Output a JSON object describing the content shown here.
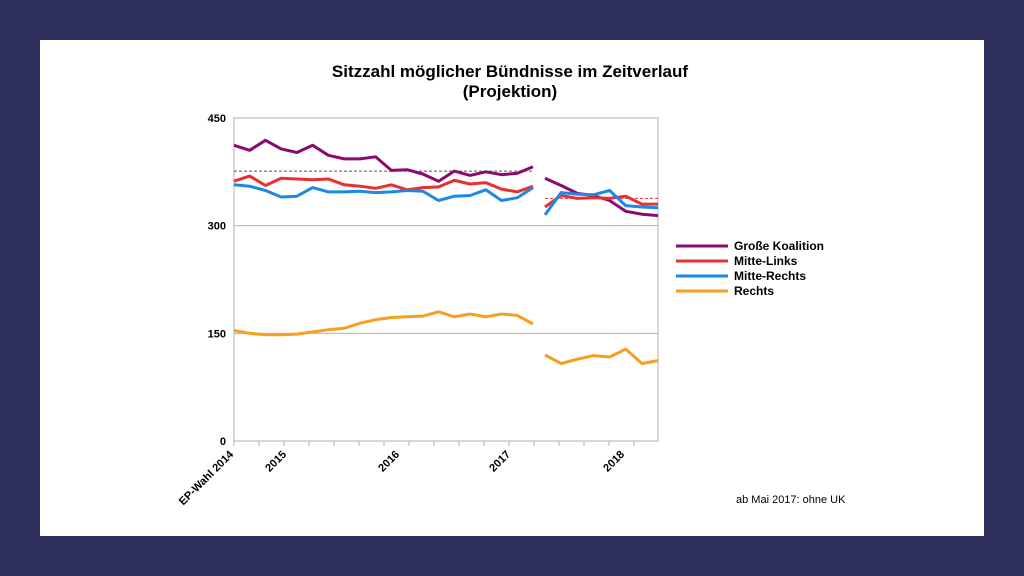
{
  "chart_data": {
    "type": "line",
    "title": "Sitzzahl möglicher Bündnisse im Zeitverlauf",
    "subtitle": "(Projektion)",
    "xlabel": "",
    "ylabel": "",
    "ylim": [
      0,
      450
    ],
    "yticks": [
      "0",
      "150",
      "300",
      "450"
    ],
    "xticks": [
      "EP-Wahl 2014",
      "2015",
      "2016",
      "2017",
      "2018"
    ],
    "grid": true,
    "legend_position": "right",
    "note": "ab Mai 2017: ohne UK",
    "reference_lines": [
      {
        "color": "#555555",
        "dash": true,
        "value": 376,
        "period": "before_may_2017"
      },
      {
        "color": "#e83030",
        "dash": true,
        "value": 338,
        "period": "after_may_2017"
      }
    ],
    "series": [
      {
        "name": "Große Koalition",
        "color": "#8b0a6f",
        "segment1": [
          412,
          405,
          419,
          407,
          402,
          412,
          398,
          393,
          393,
          396,
          377,
          378,
          372,
          362,
          376,
          370,
          375,
          371,
          373,
          382
        ],
        "segment2": [
          366,
          356,
          345,
          342,
          335,
          320,
          316,
          314
        ]
      },
      {
        "name": "Mitte-Links",
        "color": "#e83030",
        "segment1": [
          362,
          369,
          356,
          366,
          365,
          364,
          365,
          357,
          355,
          352,
          357,
          350,
          353,
          354,
          363,
          358,
          360,
          351,
          347,
          355
        ],
        "segment2": [
          326,
          342,
          338,
          339,
          338,
          341,
          330,
          330
        ]
      },
      {
        "name": "Mitte-Rechts",
        "color": "#1e88e5",
        "segment1": [
          357,
          355,
          349,
          340,
          341,
          353,
          347,
          347,
          348,
          346,
          347,
          349,
          348,
          335,
          341,
          342,
          350,
          335,
          339,
          353
        ],
        "segment2": [
          315,
          346,
          344,
          343,
          349,
          328,
          326,
          325
        ]
      },
      {
        "name": "Rechts",
        "color": "#f5a01e",
        "segment1": [
          154,
          150,
          148,
          148,
          149,
          152,
          155,
          157,
          164,
          169,
          172,
          173,
          174,
          180,
          173,
          177,
          173,
          177,
          175,
          163
        ],
        "segment2": [
          120,
          108,
          114,
          119,
          117,
          128,
          108,
          112
        ]
      }
    ]
  }
}
